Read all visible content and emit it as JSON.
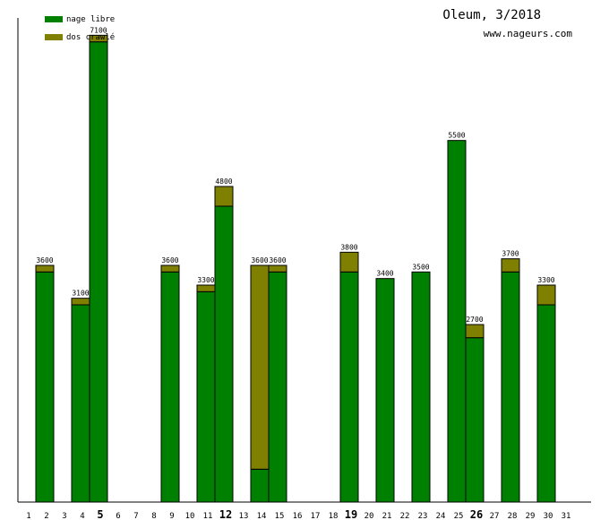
{
  "title": "Oleum, 3/2018",
  "url": "www.nageurs.com",
  "legend": [
    {
      "label": "nage libre",
      "color": "#008000"
    },
    {
      "label": "dos crawlé",
      "color": "#808000"
    }
  ],
  "chart_data": {
    "type": "bar",
    "stacked": true,
    "title": "Oleum, 3/2018",
    "xlabel": "",
    "ylabel": "",
    "ylim": [
      0,
      7500
    ],
    "grid": false,
    "legend_position": "top-left",
    "categories": [
      "1",
      "2",
      "3",
      "4",
      "5",
      "6",
      "7",
      "8",
      "9",
      "10",
      "11",
      "12",
      "13",
      "14",
      "15",
      "16",
      "17",
      "18",
      "19",
      "20",
      "21",
      "22",
      "23",
      "24",
      "25",
      "26",
      "27",
      "28",
      "29",
      "30",
      "31"
    ],
    "bold_categories": [
      "5",
      "12",
      "19",
      "26"
    ],
    "series": [
      {
        "name": "nage libre",
        "color": "#008000",
        "values": [
          0,
          3500,
          0,
          3000,
          7000,
          0,
          0,
          0,
          3500,
          0,
          3200,
          4500,
          0,
          500,
          3500,
          0,
          0,
          0,
          3500,
          0,
          3400,
          0,
          3500,
          0,
          5500,
          2500,
          0,
          3500,
          0,
          3000,
          0
        ]
      },
      {
        "name": "dos crawlé",
        "color": "#808000",
        "values": [
          0,
          100,
          0,
          100,
          100,
          0,
          0,
          0,
          100,
          0,
          100,
          300,
          0,
          3100,
          100,
          0,
          0,
          0,
          300,
          0,
          0,
          0,
          0,
          0,
          0,
          200,
          0,
          200,
          0,
          300,
          0
        ]
      }
    ],
    "totals": [
      null,
      3600,
      null,
      3100,
      7100,
      null,
      null,
      null,
      3600,
      null,
      3300,
      4800,
      null,
      3600,
      3600,
      null,
      null,
      null,
      3800,
      null,
      3400,
      null,
      3500,
      null,
      5500,
      2700,
      null,
      3700,
      null,
      3300,
      null
    ]
  }
}
